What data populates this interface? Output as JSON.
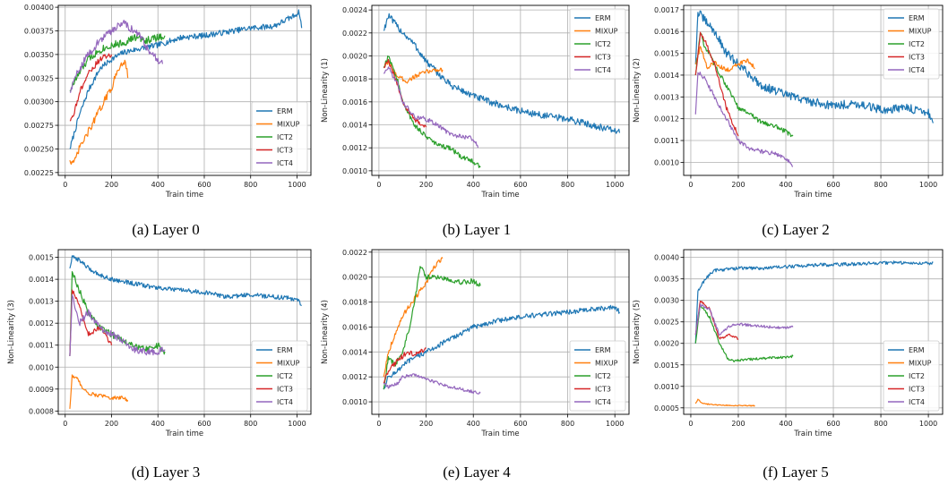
{
  "colors": {
    "ERM": "#1f77b4",
    "MIXUP": "#ff7f0e",
    "ICT2": "#2ca02c",
    "ICT3": "#d62728",
    "ICT4": "#9467bd"
  },
  "chart_data": [
    {
      "type": "line",
      "caption": "(a) Layer 0",
      "xlabel": "Train time",
      "ylabel": "",
      "xlim": [
        -30,
        1060
      ],
      "ylim": [
        0.00222,
        0.00402
      ],
      "xticks": [
        "0",
        "200",
        "400",
        "600",
        "800",
        "1000"
      ],
      "yticks": [
        "0.00225",
        "0.00250",
        "0.00275",
        "0.00300",
        "0.00325",
        "0.00350",
        "0.00375",
        "0.00400"
      ],
      "grid": true,
      "legend": "lower-right",
      "series": [
        {
          "name": "ERM",
          "x": [
            20,
            60,
            100,
            150,
            200,
            250,
            300,
            400,
            500,
            600,
            700,
            800,
            900,
            980,
            1010,
            1020
          ],
          "y": [
            0.0025,
            0.00285,
            0.00312,
            0.00335,
            0.00345,
            0.00352,
            0.00355,
            0.0036,
            0.00368,
            0.0037,
            0.00374,
            0.00378,
            0.0038,
            0.0039,
            0.00395,
            0.00378
          ],
          "noise": 3e-05
        },
        {
          "name": "MIXUP",
          "x": [
            20,
            40,
            60,
            100,
            150,
            200,
            230,
            260,
            270
          ],
          "y": [
            0.00238,
            0.00235,
            0.0025,
            0.00268,
            0.00292,
            0.00315,
            0.00335,
            0.00345,
            0.00325
          ],
          "noise": 4e-05
        },
        {
          "name": "ICT2",
          "x": [
            20,
            60,
            100,
            150,
            200,
            250,
            300,
            350,
            400,
            430
          ],
          "y": [
            0.00312,
            0.0033,
            0.00345,
            0.00355,
            0.0036,
            0.00362,
            0.00368,
            0.00365,
            0.00368,
            0.0037
          ],
          "noise": 4e-05
        },
        {
          "name": "ICT3",
          "x": [
            20,
            40,
            70,
            100,
            150,
            200
          ],
          "y": [
            0.0028,
            0.0029,
            0.00315,
            0.0033,
            0.00345,
            0.0035
          ],
          "noise": 3e-05
        },
        {
          "name": "ICT4",
          "x": [
            20,
            60,
            100,
            150,
            200,
            250,
            280,
            320,
            360,
            400,
            420
          ],
          "y": [
            0.0031,
            0.00335,
            0.0035,
            0.00365,
            0.00375,
            0.00385,
            0.00378,
            0.0037,
            0.00355,
            0.00345,
            0.0034
          ],
          "noise": 4e-05
        }
      ]
    },
    {
      "type": "line",
      "caption": "(b) Layer 1",
      "xlabel": "Train time",
      "ylabel": "Non-Linearity (1)",
      "xlim": [
        -30,
        1060
      ],
      "ylim": [
        0.00096,
        0.00244
      ],
      "xticks": [
        "0",
        "200",
        "400",
        "600",
        "800",
        "1000"
      ],
      "yticks": [
        "0.0010",
        "0.0012",
        "0.0014",
        "0.0016",
        "0.0018",
        "0.0020",
        "0.0022",
        "0.0024"
      ],
      "grid": true,
      "legend": "upper-right",
      "series": [
        {
          "name": "ERM",
          "x": [
            20,
            40,
            80,
            150,
            200,
            300,
            400,
            500,
            600,
            700,
            800,
            900,
            1000,
            1020
          ],
          "y": [
            0.00222,
            0.00235,
            0.00225,
            0.0021,
            0.00195,
            0.00175,
            0.00165,
            0.00158,
            0.00152,
            0.00148,
            0.00145,
            0.0014,
            0.00135,
            0.00133
          ],
          "noise": 3e-05
        },
        {
          "name": "MIXUP",
          "x": [
            20,
            40,
            80,
            120,
            160,
            200,
            240,
            270
          ],
          "y": [
            0.0019,
            0.00195,
            0.00182,
            0.00178,
            0.00183,
            0.00186,
            0.00188,
            0.00188
          ],
          "noise": 2e-05
        },
        {
          "name": "ICT2",
          "x": [
            20,
            40,
            80,
            100,
            150,
            200,
            250,
            300,
            350,
            400,
            430
          ],
          "y": [
            0.0019,
            0.002,
            0.00178,
            0.0016,
            0.0014,
            0.0013,
            0.00122,
            0.0012,
            0.00112,
            0.00108,
            0.00103
          ],
          "noise": 2e-05
        },
        {
          "name": "ICT3",
          "x": [
            20,
            40,
            80,
            100,
            150,
            200
          ],
          "y": [
            0.0019,
            0.00195,
            0.00175,
            0.0016,
            0.00145,
            0.00138
          ],
          "noise": 2e-05
        },
        {
          "name": "ICT4",
          "x": [
            20,
            40,
            80,
            100,
            150,
            200,
            250,
            300,
            350,
            400,
            420
          ],
          "y": [
            0.00185,
            0.0019,
            0.00175,
            0.0016,
            0.00147,
            0.00145,
            0.0014,
            0.00132,
            0.0013,
            0.00128,
            0.0012
          ],
          "noise": 2e-05
        }
      ]
    },
    {
      "type": "line",
      "caption": "(c) Layer 2",
      "xlabel": "Train time",
      "ylabel": "Non-Linearity (2)",
      "xlim": [
        -30,
        1060
      ],
      "ylim": [
        0.00094,
        0.00172
      ],
      "xticks": [
        "0",
        "200",
        "400",
        "600",
        "800",
        "1000"
      ],
      "yticks": [
        "0.0010",
        "0.0011",
        "0.0012",
        "0.0013",
        "0.0014",
        "0.0015",
        "0.0016",
        "0.0017"
      ],
      "grid": true,
      "legend": "upper-right",
      "series": [
        {
          "name": "ERM",
          "x": [
            20,
            30,
            60,
            100,
            150,
            200,
            250,
            300,
            400,
            500,
            600,
            700,
            800,
            900,
            1000,
            1020
          ],
          "y": [
            0.00145,
            0.00169,
            0.00165,
            0.0016,
            0.0015,
            0.00145,
            0.0014,
            0.00135,
            0.00131,
            0.00128,
            0.00126,
            0.00127,
            0.00124,
            0.00125,
            0.00123,
            0.00118
          ],
          "noise": 2e-05
        },
        {
          "name": "MIXUP",
          "x": [
            20,
            40,
            70,
            100,
            150,
            200,
            240,
            270
          ],
          "y": [
            0.00145,
            0.00153,
            0.00143,
            0.00146,
            0.00142,
            0.00145,
            0.00147,
            0.00143
          ],
          "noise": 1e-05
        },
        {
          "name": "ICT2",
          "x": [
            20,
            40,
            60,
            80,
            100,
            150,
            200,
            250,
            300,
            350,
            400,
            430
          ],
          "y": [
            0.0014,
            0.0016,
            0.00152,
            0.0015,
            0.00145,
            0.00135,
            0.00125,
            0.00122,
            0.00118,
            0.00117,
            0.00114,
            0.00112
          ],
          "noise": 1e-05
        },
        {
          "name": "ICT3",
          "x": [
            20,
            40,
            60,
            80,
            100,
            150,
            200
          ],
          "y": [
            0.0014,
            0.00159,
            0.00156,
            0.0015,
            0.00145,
            0.00125,
            0.00112
          ],
          "noise": 1e-05
        },
        {
          "name": "ICT4",
          "x": [
            20,
            30,
            60,
            100,
            150,
            200,
            250,
            300,
            350,
            400,
            430
          ],
          "y": [
            0.00122,
            0.00142,
            0.00138,
            0.0013,
            0.0012,
            0.0011,
            0.00106,
            0.00105,
            0.00104,
            0.00102,
            0.00098
          ],
          "noise": 1e-05
        }
      ]
    },
    {
      "type": "line",
      "caption": "(d) Layer 3",
      "xlabel": "Train time",
      "ylabel": "Non-Linearity (3)",
      "xlim": [
        -30,
        1060
      ],
      "ylim": [
        0.000785,
        0.001535
      ],
      "xticks": [
        "0",
        "200",
        "400",
        "600",
        "800",
        "1000"
      ],
      "yticks": [
        "0.0008",
        "0.0009",
        "0.0010",
        "0.0011",
        "0.0012",
        "0.0013",
        "0.0014",
        "0.0015"
      ],
      "grid": true,
      "legend": "lower-right",
      "series": [
        {
          "name": "ERM",
          "x": [
            20,
            30,
            60,
            100,
            150,
            200,
            300,
            400,
            500,
            600,
            700,
            800,
            900,
            1000,
            1020
          ],
          "y": [
            0.00145,
            0.0015,
            0.00149,
            0.00145,
            0.00142,
            0.0014,
            0.00138,
            0.00136,
            0.00135,
            0.00134,
            0.00132,
            0.00133,
            0.00132,
            0.00131,
            0.00128
          ],
          "noise": 1e-05
        },
        {
          "name": "MIXUP",
          "x": [
            20,
            30,
            50,
            80,
            100,
            150,
            200,
            250,
            270
          ],
          "y": [
            0.00081,
            0.00096,
            0.00095,
            0.0009,
            0.00088,
            0.00087,
            0.00086,
            0.00086,
            0.00085
          ],
          "noise": 8e-06
        },
        {
          "name": "ICT2",
          "x": [
            20,
            30,
            60,
            100,
            150,
            200,
            250,
            300,
            350,
            400,
            430
          ],
          "y": [
            0.00105,
            0.00143,
            0.00135,
            0.00125,
            0.00118,
            0.00115,
            0.00112,
            0.0011,
            0.00108,
            0.0011,
            0.00107
          ],
          "noise": 1.5e-05
        },
        {
          "name": "ICT3",
          "x": [
            20,
            30,
            60,
            100,
            150,
            200
          ],
          "y": [
            0.00105,
            0.00135,
            0.00128,
            0.00115,
            0.00118,
            0.0011
          ],
          "noise": 1e-05
        },
        {
          "name": "ICT4",
          "x": [
            20,
            30,
            60,
            100,
            150,
            200,
            250,
            300,
            350,
            400,
            430
          ],
          "y": [
            0.00105,
            0.00133,
            0.0012,
            0.00125,
            0.00118,
            0.00115,
            0.00112,
            0.00108,
            0.00107,
            0.00107,
            0.00108
          ],
          "noise": 1.5e-05
        }
      ]
    },
    {
      "type": "line",
      "caption": "(e) Layer 4",
      "xlabel": "Train time",
      "ylabel": "Non-Linearity (4)",
      "xlim": [
        -30,
        1060
      ],
      "ylim": [
        0.0009,
        0.00222
      ],
      "xticks": [
        "0",
        "200",
        "400",
        "600",
        "800",
        "1000"
      ],
      "yticks": [
        "0.0010",
        "0.0012",
        "0.0014",
        "0.0016",
        "0.0018",
        "0.0020",
        "0.0022"
      ],
      "grid": true,
      "legend": "lower-right",
      "series": [
        {
          "name": "ERM",
          "x": [
            20,
            40,
            80,
            120,
            200,
            300,
            400,
            500,
            600,
            700,
            800,
            900,
            1000,
            1020
          ],
          "y": [
            0.0011,
            0.0012,
            0.00125,
            0.00132,
            0.0014,
            0.0015,
            0.0016,
            0.00165,
            0.00168,
            0.0017,
            0.00172,
            0.00174,
            0.00176,
            0.00172
          ],
          "noise": 2e-05
        },
        {
          "name": "MIXUP",
          "x": [
            20,
            40,
            80,
            120,
            160,
            200,
            240,
            270
          ],
          "y": [
            0.0012,
            0.0014,
            0.0016,
            0.00175,
            0.00185,
            0.00195,
            0.0021,
            0.00215
          ],
          "noise": 2e-05
        },
        {
          "name": "ICT2",
          "x": [
            20,
            40,
            70,
            100,
            130,
            160,
            175,
            200,
            250,
            300,
            350,
            400,
            430
          ],
          "y": [
            0.0011,
            0.00135,
            0.0013,
            0.0014,
            0.0016,
            0.0019,
            0.0021,
            0.002,
            0.002,
            0.00198,
            0.00196,
            0.00197,
            0.00193
          ],
          "noise": 2e-05
        },
        {
          "name": "ICT3",
          "x": [
            20,
            40,
            80,
            120,
            150,
            200
          ],
          "y": [
            0.00115,
            0.00125,
            0.00133,
            0.0014,
            0.00138,
            0.00143
          ],
          "noise": 2e-05
        },
        {
          "name": "ICT4",
          "x": [
            20,
            40,
            80,
            100,
            150,
            200,
            250,
            300,
            350,
            400,
            430
          ],
          "y": [
            0.00115,
            0.00112,
            0.00115,
            0.0012,
            0.00122,
            0.00118,
            0.00115,
            0.00112,
            0.0011,
            0.00108,
            0.00107
          ],
          "noise": 1.2e-05
        }
      ]
    },
    {
      "type": "line",
      "caption": "(f) Layer 5",
      "xlabel": "Train time",
      "ylabel": "Non-Linearity (5)",
      "xlim": [
        -30,
        1060
      ],
      "ylim": [
        0.00035,
        0.00418
      ],
      "xticks": [
        "0",
        "200",
        "400",
        "600",
        "800",
        "1000"
      ],
      "yticks": [
        "0.0005",
        "0.0010",
        "0.0015",
        "0.0020",
        "0.0025",
        "0.0030",
        "0.0035",
        "0.0040"
      ],
      "grid": true,
      "legend": "lower-right",
      "series": [
        {
          "name": "ERM",
          "x": [
            20,
            30,
            60,
            100,
            200,
            300,
            400,
            500,
            600,
            700,
            800,
            900,
            1000,
            1020
          ],
          "y": [
            0.002,
            0.0032,
            0.0035,
            0.0037,
            0.00375,
            0.00375,
            0.00378,
            0.00382,
            0.00383,
            0.00385,
            0.00387,
            0.00388,
            0.00386,
            0.00388
          ],
          "noise": 4e-05
        },
        {
          "name": "MIXUP",
          "x": [
            20,
            30,
            50,
            100,
            150,
            200,
            250,
            270
          ],
          "y": [
            0.0006,
            0.0007,
            0.0006,
            0.00057,
            0.00056,
            0.00055,
            0.00055,
            0.00055
          ],
          "noise": 1.2e-05
        },
        {
          "name": "ICT2",
          "x": [
            20,
            40,
            80,
            120,
            160,
            200,
            250,
            300,
            350,
            400,
            430
          ],
          "y": [
            0.002,
            0.0029,
            0.0026,
            0.002,
            0.0016,
            0.0016,
            0.00163,
            0.00165,
            0.00167,
            0.00168,
            0.0017
          ],
          "noise": 3e-05
        },
        {
          "name": "ICT3",
          "x": [
            20,
            40,
            80,
            120,
            160,
            200
          ],
          "y": [
            0.0022,
            0.003,
            0.0028,
            0.0021,
            0.0022,
            0.0021
          ],
          "noise": 3e-05
        },
        {
          "name": "ICT4",
          "x": [
            20,
            40,
            80,
            120,
            160,
            200,
            250,
            300,
            350,
            400,
            430
          ],
          "y": [
            0.0022,
            0.0029,
            0.0028,
            0.0022,
            0.0024,
            0.00245,
            0.00242,
            0.0024,
            0.00237,
            0.00236,
            0.00238
          ],
          "noise": 3e-05
        }
      ]
    }
  ]
}
